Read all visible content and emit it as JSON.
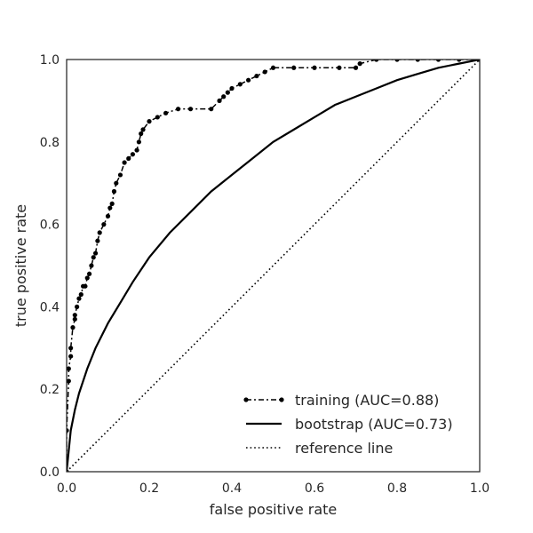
{
  "chart_data": {
    "type": "line",
    "title": "",
    "xlabel": "false positive rate",
    "ylabel": "true positive rate",
    "xlim": [
      0.0,
      1.0
    ],
    "ylim": [
      0.0,
      1.0
    ],
    "xticks": [
      "0.0",
      "0.2",
      "0.4",
      "0.6",
      "0.8",
      "1.0"
    ],
    "yticks": [
      "0.0",
      "0.2",
      "0.4",
      "0.6",
      "0.8",
      "1.0"
    ],
    "grid": false,
    "legend_position": "lower-right",
    "series": [
      {
        "name": "training (AUC=0.88)",
        "style": "dash-dot-markers",
        "x": [
          0.0,
          0.0,
          0.005,
          0.005,
          0.01,
          0.01,
          0.015,
          0.02,
          0.02,
          0.025,
          0.03,
          0.035,
          0.04,
          0.045,
          0.05,
          0.055,
          0.06,
          0.065,
          0.07,
          0.075,
          0.08,
          0.09,
          0.1,
          0.105,
          0.11,
          0.115,
          0.12,
          0.13,
          0.14,
          0.15,
          0.16,
          0.17,
          0.175,
          0.18,
          0.185,
          0.2,
          0.22,
          0.24,
          0.27,
          0.3,
          0.35,
          0.37,
          0.38,
          0.39,
          0.4,
          0.42,
          0.44,
          0.46,
          0.48,
          0.5,
          0.55,
          0.6,
          0.66,
          0.7,
          0.71,
          0.75,
          0.8,
          0.85,
          0.9,
          0.95,
          1.0
        ],
        "y": [
          0.0,
          0.1,
          0.22,
          0.25,
          0.28,
          0.3,
          0.35,
          0.37,
          0.38,
          0.4,
          0.42,
          0.43,
          0.45,
          0.45,
          0.47,
          0.48,
          0.5,
          0.52,
          0.53,
          0.56,
          0.58,
          0.6,
          0.62,
          0.64,
          0.65,
          0.68,
          0.7,
          0.72,
          0.75,
          0.76,
          0.77,
          0.78,
          0.8,
          0.82,
          0.83,
          0.85,
          0.86,
          0.87,
          0.88,
          0.88,
          0.88,
          0.9,
          0.91,
          0.92,
          0.93,
          0.94,
          0.95,
          0.96,
          0.97,
          0.98,
          0.98,
          0.98,
          0.98,
          0.98,
          0.99,
          1.0,
          1.0,
          1.0,
          1.0,
          1.0,
          1.0
        ]
      },
      {
        "name": "bootstrap (AUC=0.73)",
        "style": "solid",
        "x": [
          0.0,
          0.01,
          0.02,
          0.03,
          0.05,
          0.07,
          0.1,
          0.13,
          0.16,
          0.2,
          0.25,
          0.3,
          0.35,
          0.4,
          0.45,
          0.5,
          0.55,
          0.6,
          0.65,
          0.7,
          0.75,
          0.8,
          0.85,
          0.9,
          0.95,
          1.0
        ],
        "y": [
          0.0,
          0.1,
          0.15,
          0.19,
          0.25,
          0.3,
          0.36,
          0.41,
          0.46,
          0.52,
          0.58,
          0.63,
          0.68,
          0.72,
          0.76,
          0.8,
          0.83,
          0.86,
          0.89,
          0.91,
          0.93,
          0.95,
          0.965,
          0.98,
          0.99,
          1.0
        ]
      },
      {
        "name": "reference line",
        "style": "dotted",
        "x": [
          0.0,
          1.0
        ],
        "y": [
          0.0,
          1.0
        ]
      }
    ]
  }
}
